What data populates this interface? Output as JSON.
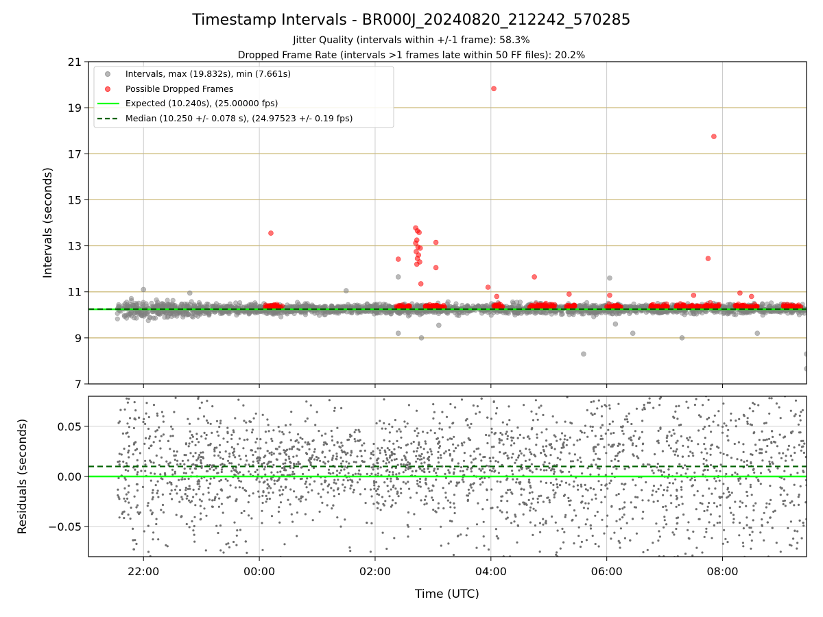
{
  "figure": {
    "title": "Timestamp Intervals - BR000J_20240820_212242_570285",
    "subtitle_1": "Jitter Quality (intervals within +/-1 frame): 58.3%",
    "subtitle_2": "Dropped Frame Rate (intervals >1 frames late within 50 FF files): 20.2%"
  },
  "chart_data": [
    {
      "type": "scatter",
      "panel": "intervals",
      "ylabel": "Intervals (seconds)",
      "xlabel": "",
      "x_unit": "hours since 00:00 UTC",
      "xlim": [
        -2.95,
        9.45
      ],
      "ylim": [
        7,
        21
      ],
      "yticks": [
        "7",
        "9",
        "11",
        "13",
        "15",
        "17",
        "19",
        "21"
      ],
      "ytick_values": [
        7,
        9,
        11,
        13,
        15,
        17,
        19,
        21
      ],
      "grid": true,
      "legend_position": "top-left",
      "legend": [
        "Intervals, max (19.832s), min (7.661s)",
        "Possible Dropped Frames",
        "Expected (10.240s), (25.00000 fps)",
        "Median (10.250 +/- 0.078 s), (24.97523 +/- 0.19 fps)"
      ],
      "expected_line": 10.24,
      "median_line": 10.25,
      "colors": {
        "intervals": "#808080",
        "dropped": "#ff0000",
        "expected": "#00ff00",
        "median": "#006400",
        "gridline": "#c8b46e"
      },
      "intervals_outliers": [
        [
          -2.0,
          11.1
        ],
        [
          -1.2,
          10.95
        ],
        [
          1.5,
          11.05
        ],
        [
          2.4,
          11.65
        ],
        [
          2.4,
          9.2
        ],
        [
          2.8,
          9.0
        ],
        [
          3.1,
          9.55
        ],
        [
          5.6,
          8.3
        ],
        [
          6.05,
          11.6
        ],
        [
          6.15,
          9.6
        ],
        [
          6.45,
          9.2
        ],
        [
          7.3,
          9.0
        ],
        [
          8.6,
          9.2
        ],
        [
          9.45,
          8.3
        ],
        [
          9.45,
          7.66
        ]
      ],
      "dropped_points": [
        [
          0.2,
          13.55
        ],
        [
          2.4,
          12.42
        ],
        [
          2.7,
          13.78
        ],
        [
          2.73,
          13.65
        ],
        [
          2.76,
          13.58
        ],
        [
          2.72,
          13.25
        ],
        [
          2.7,
          13.12
        ],
        [
          2.74,
          12.95
        ],
        [
          2.78,
          12.9
        ],
        [
          2.71,
          12.75
        ],
        [
          2.75,
          12.6
        ],
        [
          2.73,
          12.45
        ],
        [
          2.77,
          12.3
        ],
        [
          2.72,
          12.2
        ],
        [
          2.79,
          11.35
        ],
        [
          3.05,
          13.15
        ],
        [
          3.05,
          12.05
        ],
        [
          3.95,
          11.2
        ],
        [
          4.05,
          19.83
        ],
        [
          4.1,
          10.8
        ],
        [
          4.75,
          11.65
        ],
        [
          5.35,
          10.9
        ],
        [
          6.05,
          10.85
        ],
        [
          7.75,
          12.45
        ],
        [
          7.5,
          10.85
        ],
        [
          7.85,
          17.75
        ],
        [
          8.3,
          10.95
        ],
        [
          8.5,
          10.8
        ]
      ],
      "dropped_clusters": [
        [
          0.1,
          0.4
        ],
        [
          2.35,
          2.6
        ],
        [
          2.85,
          3.2
        ],
        [
          4.05,
          4.2
        ],
        [
          4.65,
          5.1
        ],
        [
          5.3,
          5.45
        ],
        [
          6.0,
          6.25
        ],
        [
          6.75,
          7.05
        ],
        [
          7.2,
          7.5
        ],
        [
          7.55,
          7.95
        ],
        [
          8.2,
          8.6
        ],
        [
          9.05,
          9.35
        ]
      ]
    },
    {
      "type": "scatter",
      "panel": "residuals",
      "ylabel": "Residuals (seconds)",
      "xlabel": "Time (UTC)",
      "xlim": [
        -2.95,
        9.45
      ],
      "ylim": [
        -0.08,
        0.08
      ],
      "yticks": [
        "−0.05",
        "0.00",
        "0.05"
      ],
      "ytick_values": [
        -0.05,
        0.0,
        0.05
      ],
      "xticks": [
        "22:00",
        "00:00",
        "02:00",
        "04:00",
        "06:00",
        "08:00"
      ],
      "xtick_values": [
        -2,
        0,
        2,
        4,
        6,
        8
      ],
      "grid": true,
      "expected_line": 0.0,
      "median_line": 0.01,
      "colors": {
        "points": "#6e6e6e"
      }
    }
  ]
}
